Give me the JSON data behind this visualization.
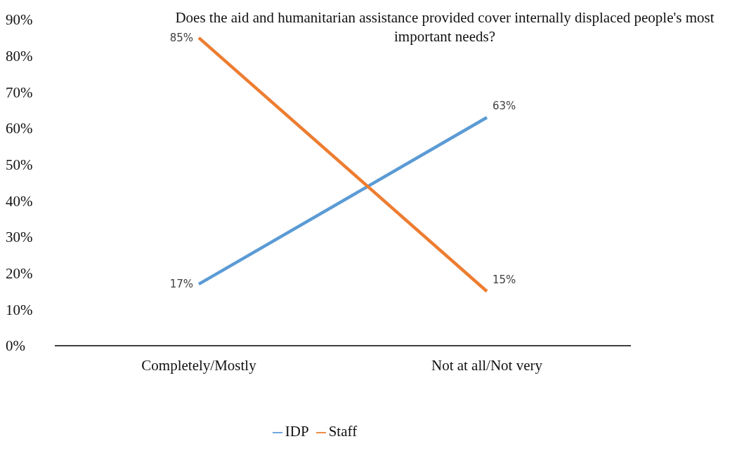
{
  "chart_data": {
    "type": "line",
    "title": "Does the aid and humanitarian assistance provided cover internally displaced people's most important needs?",
    "categories": [
      "Completely/Mostly",
      "Not at all/Not very"
    ],
    "series": [
      {
        "name": "IDP",
        "color": "#5b9bd5",
        "values": [
          17,
          63
        ],
        "value_labels": [
          "17%",
          "63%"
        ]
      },
      {
        "name": "Staff",
        "color": "#ed7d31",
        "values": [
          85,
          15
        ],
        "value_labels": [
          "85%",
          "15%"
        ]
      }
    ],
    "ylim": [
      0,
      90
    ],
    "yticks": [
      {
        "value": 0,
        "label": "0%"
      },
      {
        "value": 10,
        "label": "10%"
      },
      {
        "value": 20,
        "label": "20%"
      },
      {
        "value": 30,
        "label": "30%"
      },
      {
        "value": 40,
        "label": "40%"
      },
      {
        "value": 50,
        "label": "50%"
      },
      {
        "value": 60,
        "label": "60%"
      },
      {
        "value": 70,
        "label": "70%"
      },
      {
        "value": 80,
        "label": "80%"
      },
      {
        "value": 90,
        "label": "90%"
      }
    ],
    "grid": false,
    "legend": "bottom",
    "marker": "none",
    "line_style": "solid"
  }
}
